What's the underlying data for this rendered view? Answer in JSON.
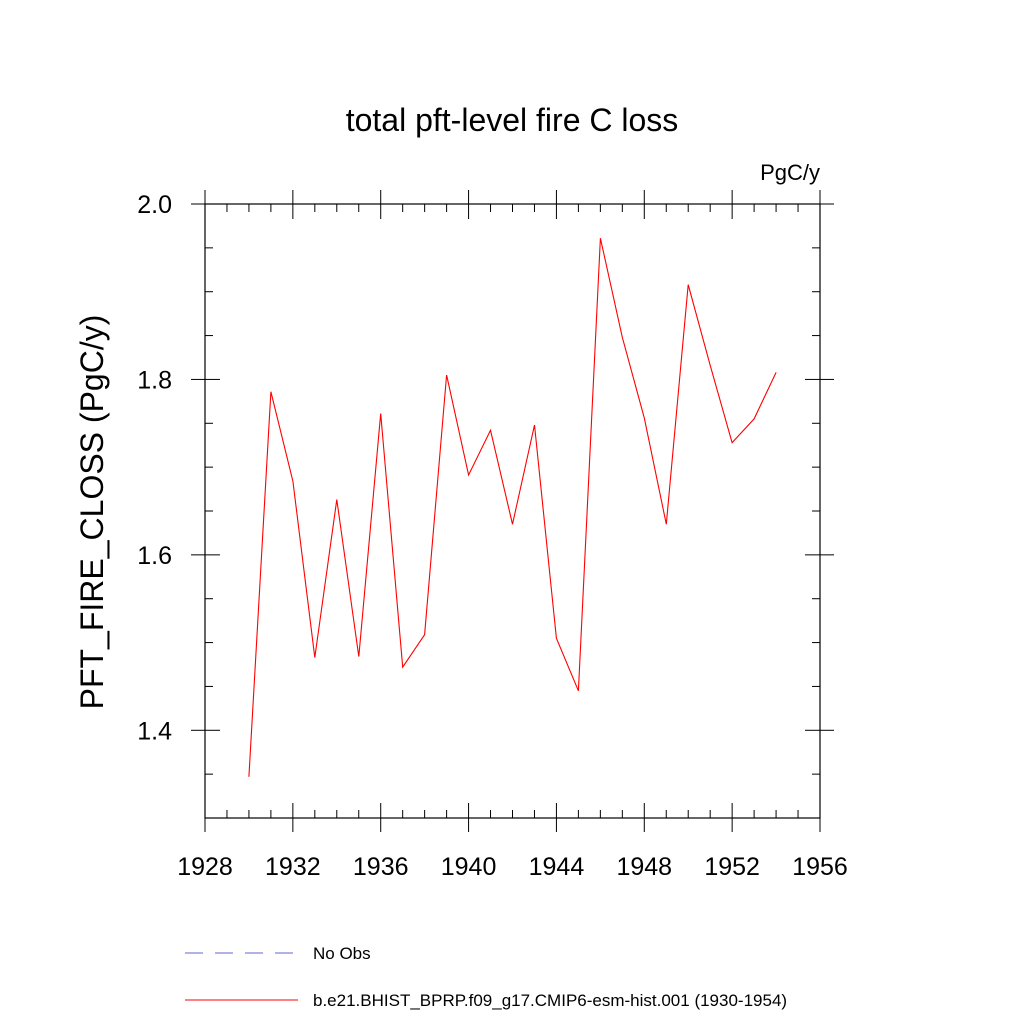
{
  "chart_data": {
    "type": "line",
    "title": "total pft-level fire C loss",
    "units_label": "PgC/y",
    "ylabel": "PFT_FIRE_CLOSS  (PgC/y)",
    "xlabel": "",
    "xlim": [
      1928,
      1956
    ],
    "ylim": [
      1.3,
      2.0
    ],
    "x_ticks": [
      1928,
      1932,
      1936,
      1940,
      1944,
      1948,
      1952,
      1956
    ],
    "y_ticks": [
      1.4,
      1.6,
      1.8,
      2.0
    ],
    "y_tick_labels": [
      "1.4",
      "1.6",
      "1.8",
      "2.0"
    ],
    "grid": false,
    "legend_position": "bottom",
    "series": [
      {
        "name": "b.e21.BHIST_BPRP.f09_g17.CMIP6-esm-hist.001 (1930-1954)",
        "color": "#ff0000",
        "style": "solid",
        "x": [
          1930,
          1931,
          1932,
          1933,
          1934,
          1935,
          1936,
          1937,
          1938,
          1939,
          1940,
          1941,
          1942,
          1943,
          1944,
          1945,
          1946,
          1947,
          1948,
          1949,
          1950,
          1951,
          1952,
          1953,
          1954
        ],
        "values": [
          1.347,
          1.786,
          1.684,
          1.483,
          1.663,
          1.484,
          1.761,
          1.472,
          1.509,
          1.805,
          1.691,
          1.742,
          1.635,
          1.748,
          1.505,
          1.445,
          1.961,
          1.848,
          1.756,
          1.635,
          1.908,
          1.816,
          1.728,
          1.755,
          1.808
        ]
      }
    ],
    "legend": [
      {
        "label": "No Obs",
        "color": "#6666cc",
        "style": "dashed"
      },
      {
        "label": "b.e21.BHIST_BPRP.f09_g17.CMIP6-esm-hist.001 (1930-1954)",
        "color": "#ff0000",
        "style": "solid"
      }
    ]
  }
}
